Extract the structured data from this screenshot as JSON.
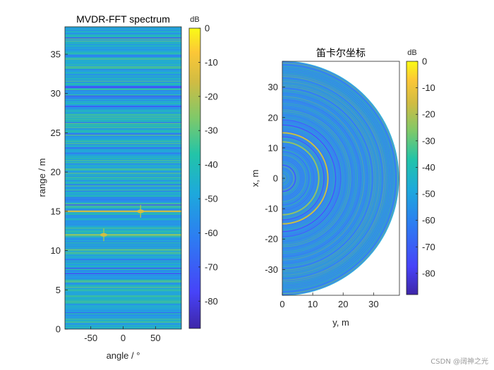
{
  "colors": {
    "axis": "#262626",
    "colormap": [
      "#3e26a8",
      "#4743f8",
      "#2d7cf2",
      "#1da9dc",
      "#22c4a8",
      "#7ec96a",
      "#d0bc43",
      "#fcc737",
      "#f9fb15"
    ],
    "background": "#3f7ff0"
  },
  "chart_data": [
    {
      "type": "heatmap",
      "title": "MVDR-FFT spectrum",
      "xlabel": "angle / °",
      "ylabel": "range / m",
      "xlim": [
        -90,
        90
      ],
      "ylim": [
        0,
        38.5
      ],
      "xticks": [
        -50,
        0,
        50
      ],
      "yticks": [
        0,
        5,
        10,
        15,
        20,
        25,
        30,
        35
      ],
      "colorbar": {
        "label": "dB",
        "clim": [
          -88,
          0
        ],
        "ticks": [
          0,
          -10,
          -20,
          -30,
          -40,
          -50,
          -60,
          -70,
          -80
        ]
      },
      "features": [
        {
          "kind": "range-line",
          "range": 15,
          "level_db": -30
        },
        {
          "kind": "range-line",
          "range": 12,
          "level_db": -38
        },
        {
          "kind": "peak",
          "angle": -30,
          "range": 12,
          "level_db": -30
        },
        {
          "kind": "peak",
          "angle": 27,
          "range": 15,
          "level_db": -28
        }
      ]
    },
    {
      "type": "heatmap",
      "title": "笛卡尔坐标",
      "xlabel": "y, m",
      "ylabel": "x, m",
      "xlim": [
        0,
        38.5
      ],
      "ylim": [
        -38.5,
        38.5
      ],
      "xticks": [
        0,
        10,
        20,
        30
      ],
      "yticks": [
        -30,
        -20,
        -10,
        0,
        10,
        20,
        30
      ],
      "colorbar": {
        "label": "dB",
        "clim": [
          -88,
          0
        ],
        "ticks": [
          0,
          -10,
          -20,
          -30,
          -40,
          -50,
          -60,
          -70,
          -80
        ]
      },
      "features": [
        {
          "kind": "arc",
          "radius": 15,
          "level_db": -30
        },
        {
          "kind": "arc",
          "radius": 12,
          "level_db": -38
        }
      ]
    }
  ],
  "watermark": "CSDN @阔神之光"
}
